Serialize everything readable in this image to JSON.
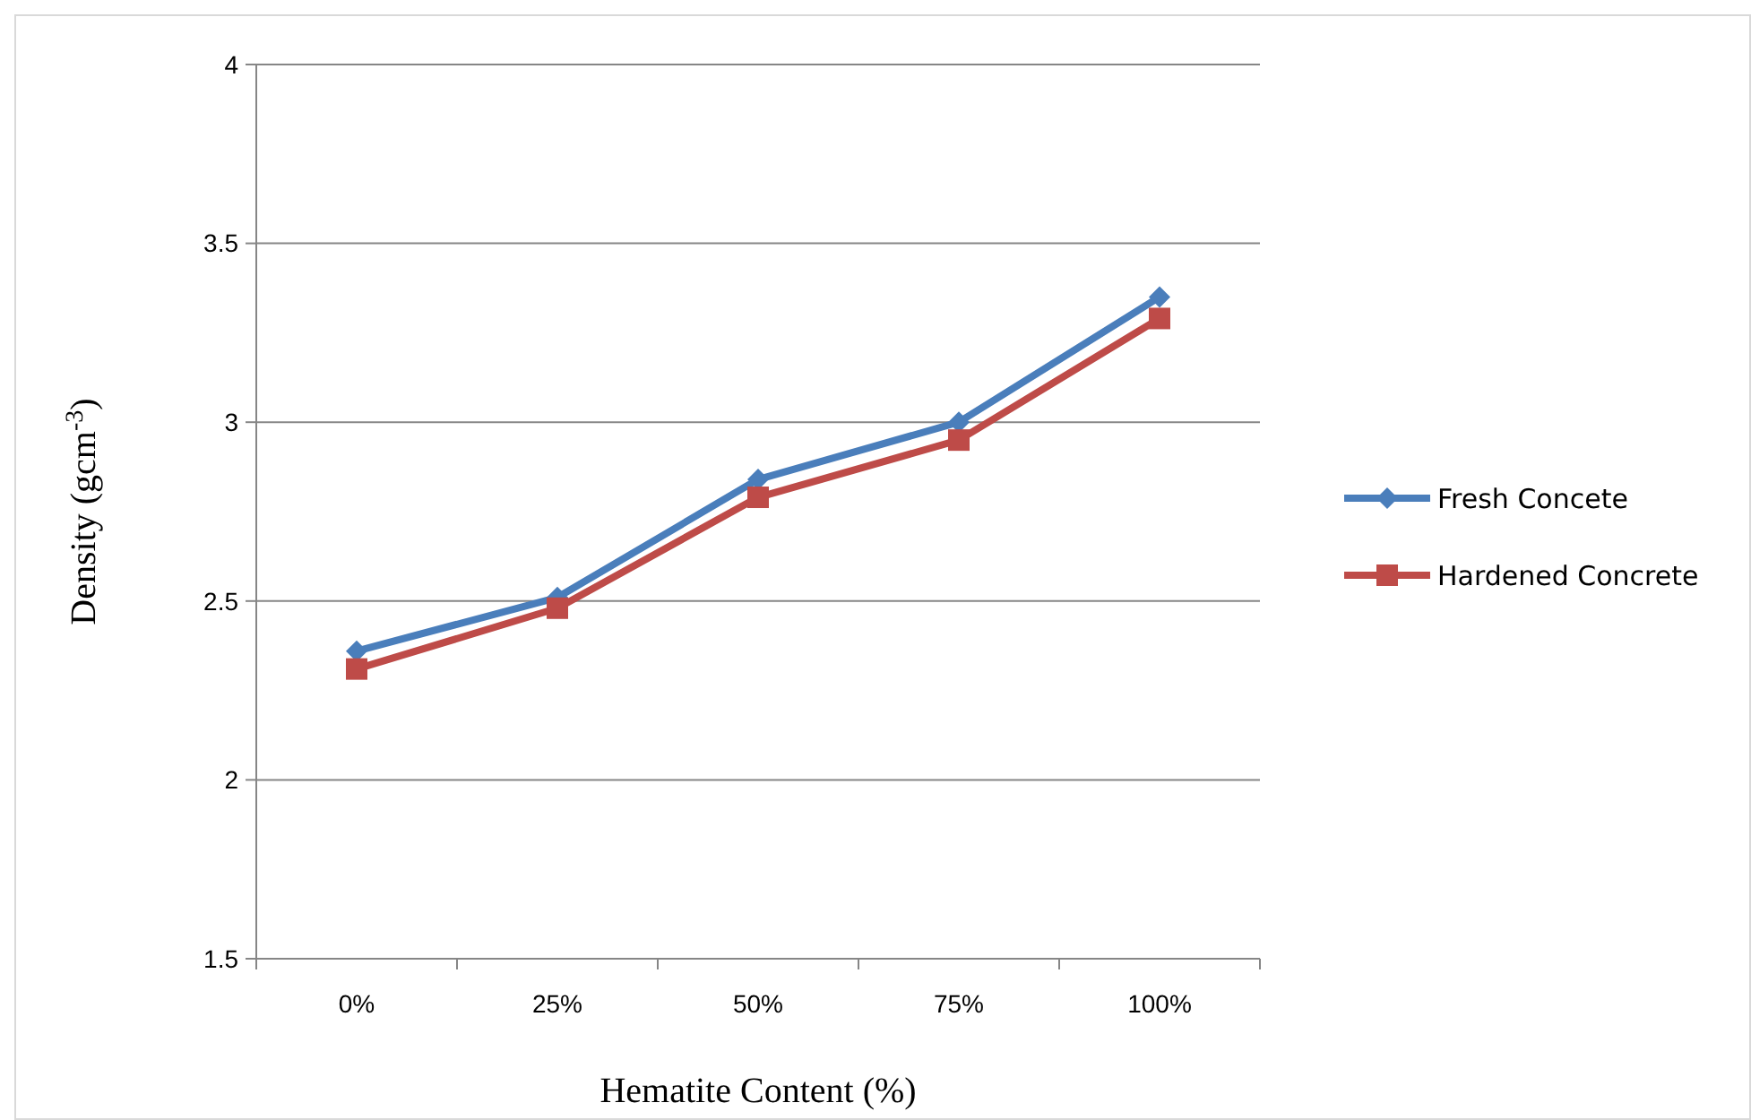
{
  "chart_data": {
    "type": "line",
    "xlabel": "Hematite Content (%)",
    "ylabel": "Density (gcm$^{-3}$)",
    "categories": [
      "0%",
      "25%",
      "50%",
      "75%",
      "100%"
    ],
    "series": [
      {
        "name": "Fresh Concete",
        "color": "#4a7ebb",
        "marker": "diamond",
        "values": [
          2.36,
          2.51,
          2.84,
          3.0,
          3.35
        ]
      },
      {
        "name": "Hardened Concrete",
        "color": "#be4b48",
        "marker": "square",
        "values": [
          2.31,
          2.48,
          2.79,
          2.95,
          3.29
        ]
      }
    ],
    "ylim": [
      1.5,
      4
    ],
    "yticks": [
      1.5,
      2,
      2.5,
      3,
      3.5,
      4
    ],
    "grid": "y",
    "legend": "right",
    "line_style": "solid"
  }
}
